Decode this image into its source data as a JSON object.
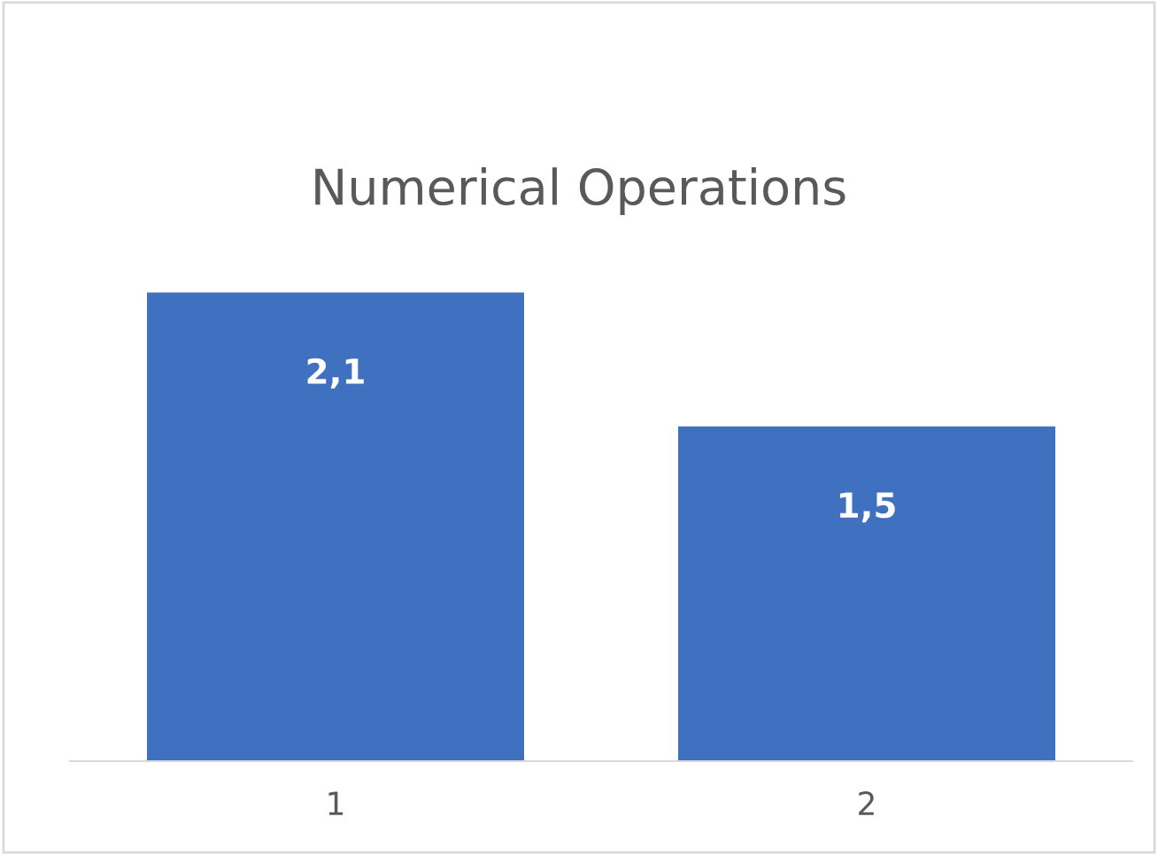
{
  "chart_data": {
    "type": "bar",
    "title": "Numerical Operations",
    "categories": [
      "1",
      "2"
    ],
    "values": [
      2.1,
      1.5
    ],
    "value_labels": [
      "2,1",
      "1,5"
    ],
    "color": "#4070c0",
    "grid": false,
    "legend": false
  }
}
